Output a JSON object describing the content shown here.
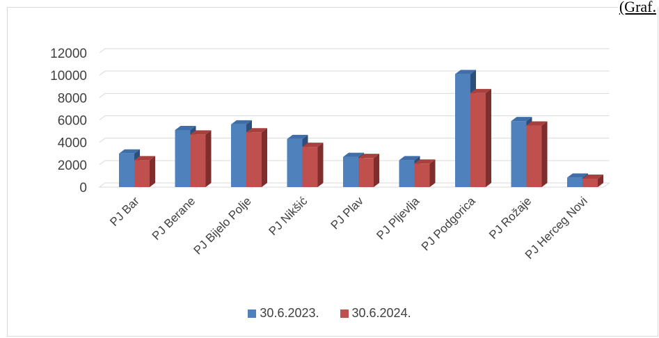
{
  "caption": "(Graf.",
  "colors": {
    "series1_front": "#4f81bd",
    "series1_top": "#3f6ea8",
    "series1_side": "#2c4f7c",
    "series2_front": "#c0504d",
    "series2_top": "#a8413e",
    "series2_side": "#7e2e2c",
    "grid": "#d9d9d9",
    "text": "#404040"
  },
  "chart_data": {
    "type": "bar",
    "title": "",
    "xlabel": "",
    "ylabel": "",
    "ylim": [
      0,
      12000
    ],
    "yticks": [
      0,
      2000,
      4000,
      6000,
      8000,
      10000,
      12000
    ],
    "ytick_labels": [
      "0",
      "2000",
      "4000",
      "6000",
      "8000",
      "10000",
      "12000"
    ],
    "grid": true,
    "legend_position": "bottom",
    "categories": [
      "PJ Bar",
      "PJ Berane",
      "PJ Bijelo Polje",
      "PJ Nikšić",
      "PJ Plav",
      "PJ Pljevlja",
      "PJ Podgorica",
      "PJ Rožaje",
      "PJ Herceg Novi"
    ],
    "series": [
      {
        "name": "30.6.2023.",
        "values": [
          3000,
          5100,
          5600,
          4300,
          2700,
          2400,
          10100,
          5900,
          850
        ]
      },
      {
        "name": "30.6.2024.",
        "values": [
          2400,
          4700,
          4900,
          3600,
          2600,
          2100,
          8400,
          5500,
          750
        ]
      }
    ]
  }
}
